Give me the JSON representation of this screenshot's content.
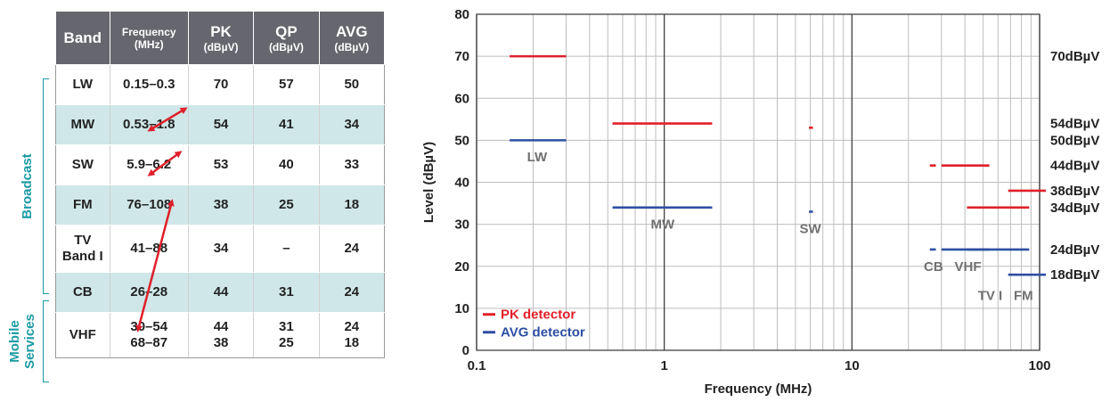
{
  "table": {
    "headers": {
      "band": "Band",
      "frequency": "Frequency",
      "frequency_unit": "(MHz)",
      "pk": "PK",
      "qp": "QP",
      "avg": "AVG",
      "level_unit": "(dBµV)"
    },
    "rows": [
      {
        "band": [
          "LW"
        ],
        "frequency": [
          "0.15–0.3"
        ],
        "pk": [
          "70"
        ],
        "qp": [
          "57"
        ],
        "avg": [
          "50"
        ]
      },
      {
        "band": [
          "MW"
        ],
        "frequency": [
          "0.53–1.8"
        ],
        "pk": [
          "54"
        ],
        "qp": [
          "41"
        ],
        "avg": [
          "34"
        ]
      },
      {
        "band": [
          "SW"
        ],
        "frequency": [
          "5.9–6.2"
        ],
        "pk": [
          "53"
        ],
        "qp": [
          "40"
        ],
        "avg": [
          "33"
        ]
      },
      {
        "band": [
          "FM"
        ],
        "frequency": [
          "76–108"
        ],
        "pk": [
          "38"
        ],
        "qp": [
          "25"
        ],
        "avg": [
          "18"
        ]
      },
      {
        "band": [
          "TV",
          "Band I"
        ],
        "frequency": [
          "41–88"
        ],
        "pk": [
          "34"
        ],
        "qp": [
          "–"
        ],
        "avg": [
          "24"
        ]
      },
      {
        "band": [
          "CB"
        ],
        "frequency": [
          "26–28"
        ],
        "pk": [
          "44"
        ],
        "qp": [
          "31"
        ],
        "avg": [
          "24"
        ]
      },
      {
        "band": [
          "VHF"
        ],
        "frequency": [
          "30–54",
          "68–87"
        ],
        "pk": [
          "44",
          "38"
        ],
        "qp": [
          "31",
          "25"
        ],
        "avg": [
          "24",
          "18"
        ]
      }
    ],
    "groups": {
      "broadcast": "Broadcast",
      "mobile_line1": "Mobile",
      "mobile_line2": "Services"
    },
    "arrow_color": "#e0202a"
  },
  "chart_data": {
    "type": "line",
    "xlabel": "Frequency (MHz)",
    "ylabel": "Level  (dBµV)",
    "x_scale": "log",
    "xlim": [
      0.1,
      100
    ],
    "ylim": [
      0,
      80
    ],
    "x_ticks": [
      "0.1",
      "1",
      "10",
      "100"
    ],
    "x_tick_values": [
      0.1,
      1,
      10,
      100
    ],
    "y_ticks": [
      0,
      10,
      20,
      30,
      40,
      50,
      60,
      70,
      80
    ],
    "grid": true,
    "legend_position": "bottom-left",
    "series": [
      {
        "name": "PK detector",
        "color": "#e0202a",
        "segments": [
          {
            "x": [
              0.15,
              0.3
            ],
            "y": 70
          },
          {
            "x": [
              0.53,
              1.8
            ],
            "y": 54
          },
          {
            "x": [
              5.9,
              6.2
            ],
            "y": 53
          },
          {
            "x": [
              26,
              28
            ],
            "y": 44
          },
          {
            "x": [
              30,
              54
            ],
            "y": 44
          },
          {
            "x": [
              41,
              88
            ],
            "y": 34
          },
          {
            "x": [
              68,
              108
            ],
            "y": 38
          }
        ]
      },
      {
        "name": "AVG detector",
        "color": "#2e4fa3",
        "segments": [
          {
            "x": [
              0.15,
              0.3
            ],
            "y": 50
          },
          {
            "x": [
              0.53,
              1.8
            ],
            "y": 34
          },
          {
            "x": [
              5.9,
              6.2
            ],
            "y": 33
          },
          {
            "x": [
              26,
              28
            ],
            "y": 24
          },
          {
            "x": [
              30,
              54
            ],
            "y": 24
          },
          {
            "x": [
              41,
              88
            ],
            "y": 24
          },
          {
            "x": [
              68,
              108
            ],
            "y": 18
          }
        ]
      }
    ],
    "band_labels": [
      {
        "text": "LW",
        "x": 0.21,
        "y": 46
      },
      {
        "text": "MW",
        "x": 0.98,
        "y": 30
      },
      {
        "text": "SW",
        "x": 6.0,
        "y": 29
      },
      {
        "text": "CB",
        "x": 27.2,
        "y": 20
      },
      {
        "text": "VHF",
        "x": 41.5,
        "y": 20
      },
      {
        "text": "TV I",
        "x": 54.5,
        "y": 13
      },
      {
        "text": "FM",
        "x": 82.0,
        "y": 13
      }
    ],
    "level_labels": [
      "70dBµV",
      "54dBµV",
      "50dBµV",
      "44dBµV",
      "38dBµV",
      "34dBµV",
      "24dBµV",
      "18dBµV"
    ],
    "level_values": [
      70,
      54,
      50,
      44,
      38,
      34,
      24,
      18
    ]
  }
}
